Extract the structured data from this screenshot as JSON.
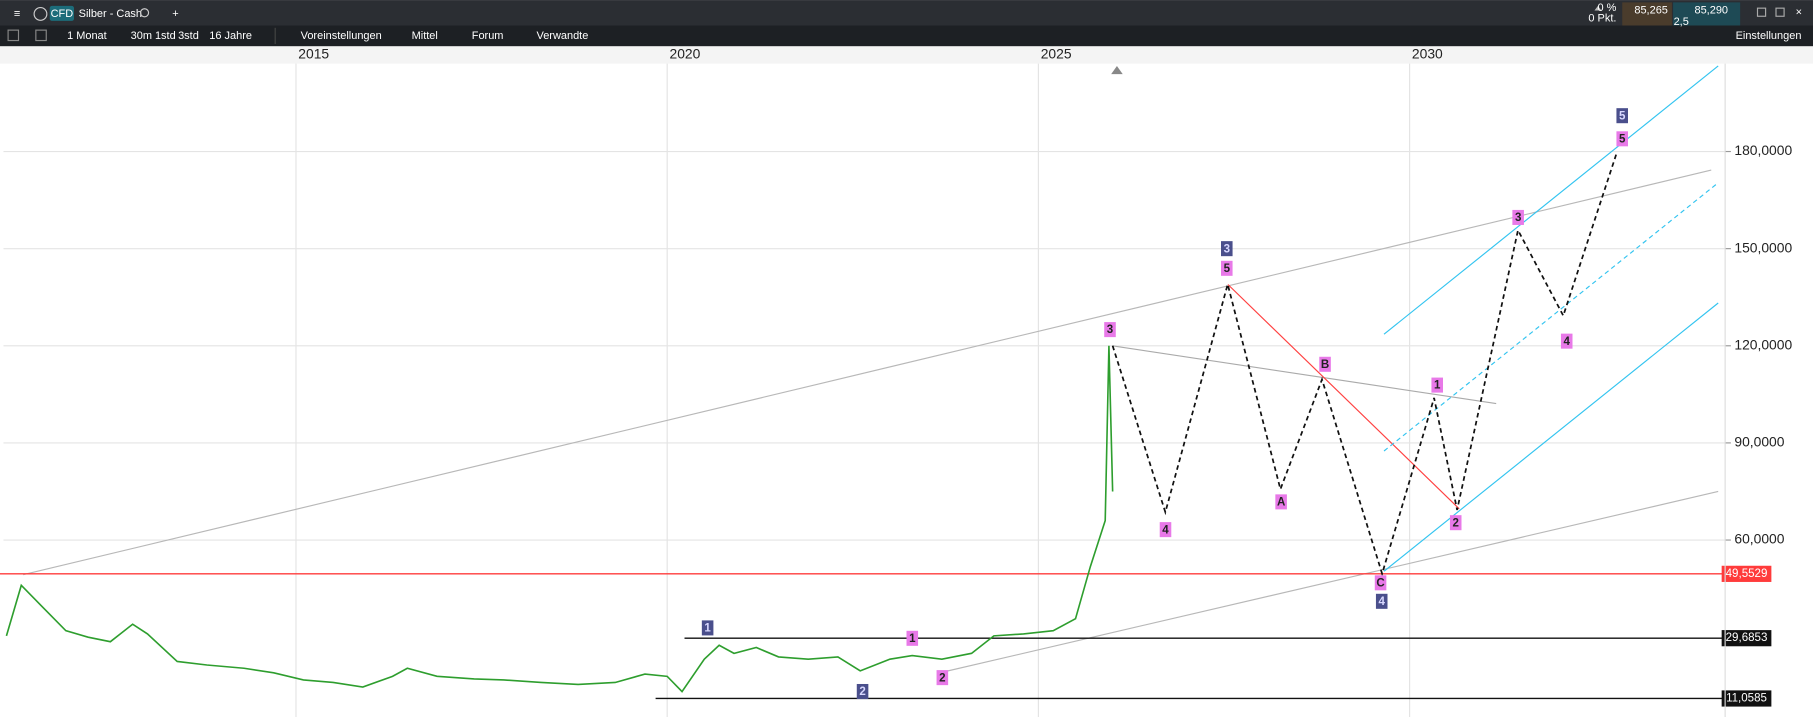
{
  "header": {
    "badge": "CFD",
    "instrument": "Silber - Cash",
    "change_pct": "0 %",
    "change_points": "0 Pkt.",
    "bid": "85,265",
    "ask": "85,290",
    "spread": "2,5"
  },
  "toolbar": {
    "interval": "1 Monat",
    "quick": [
      "30m",
      "1std",
      "3std"
    ],
    "range": "16 Jahre",
    "items": [
      "Voreinstellungen",
      "Mittel",
      "Forum",
      "Verwandte"
    ],
    "settings": "Einstellungen"
  },
  "chart_data": {
    "type": "line",
    "color": "#2e9e2e",
    "x": [
      2011.1,
      2011.3,
      2011.6,
      2011.9,
      2012.2,
      2012.5,
      2012.8,
      2013.0,
      2013.4,
      2013.8,
      2014.3,
      2014.7,
      2015.1,
      2015.5,
      2015.9,
      2016.3,
      2016.5,
      2016.9,
      2017.4,
      2017.8,
      2018.3,
      2018.8,
      2019.3,
      2019.7,
      2020.0,
      2020.2,
      2020.5,
      2020.7,
      2020.9,
      2021.2,
      2021.5,
      2021.9,
      2022.3,
      2022.6,
      2023.0,
      2023.3,
      2023.7,
      2024.1,
      2024.4,
      2024.8,
      2025.2,
      2025.5,
      2025.7,
      2025.9,
      2025.95,
      2026.0
    ],
    "values": [
      30.4,
      46,
      39,
      32,
      30,
      28.6,
      34,
      31,
      22.5,
      21.4,
      20.4,
      19,
      16.8,
      16,
      14.6,
      17.9,
      20.4,
      17.9,
      17.1,
      16.8,
      16,
      15.4,
      16,
      18.6,
      17.9,
      13.2,
      23.2,
      27.5,
      25,
      26.8,
      23.9,
      23.2,
      23.9,
      19.6,
      23.2,
      24.3,
      23.2,
      25,
      30.4,
      31,
      32,
      35.7,
      51.8,
      66,
      120,
      75
    ],
    "projection": {
      "x": [
        2026.0,
        2026.71,
        2027.55,
        2028.26,
        2028.82,
        2029.63,
        2030.33,
        2030.64,
        2031.46,
        2032.07,
        2032.79
      ],
      "values": [
        120,
        68.6,
        139,
        75.7,
        109.6,
        49.6,
        103.9,
        69.3,
        155.7,
        129.3,
        179.6
      ]
    },
    "levels": [
      {
        "value": 49.5529,
        "label": "49,5529",
        "color": "#ff3b3b"
      },
      {
        "value": 29.6853,
        "label": "29,6853",
        "color": "#111111"
      },
      {
        "value": 11.0585,
        "label": "11,0585",
        "color": "#111111"
      }
    ],
    "wave_labels": [
      {
        "text": "3",
        "color": "#e879e8"
      },
      {
        "text": "4",
        "color": "#e879e8"
      },
      {
        "text": "3",
        "color": "#4a4f8c"
      },
      {
        "text": "5",
        "color": "#e879e8"
      },
      {
        "text": "A",
        "color": "#e879e8"
      },
      {
        "text": "B",
        "color": "#e879e8"
      },
      {
        "text": "C",
        "color": "#e879e8"
      },
      {
        "text": "4",
        "color": "#4a4f8c"
      },
      {
        "text": "1",
        "color": "#e879e8"
      },
      {
        "text": "2",
        "color": "#e879e8"
      },
      {
        "text": "3",
        "color": "#e879e8"
      },
      {
        "text": "4",
        "color": "#e879e8"
      },
      {
        "text": "5",
        "color": "#4a4f8c"
      },
      {
        "text": "5",
        "color": "#e879e8"
      },
      {
        "text": "1",
        "color": "#4a4f8c"
      },
      {
        "text": "2",
        "color": "#4a4f8c"
      },
      {
        "text": "1",
        "color": "#e879e8"
      },
      {
        "text": "2",
        "color": "#e879e8"
      }
    ],
    "xlim": [
      2011.06,
      2034.25
    ],
    "xticks": [
      2015,
      2020,
      2025,
      2030
    ],
    "ylim": [
      5.36,
      207.14
    ],
    "yticks": [
      {
        "value": 60,
        "label": "60,0000"
      },
      {
        "value": 90,
        "label": "90,0000"
      },
      {
        "value": 120,
        "label": "120,0000"
      },
      {
        "value": 150,
        "label": "150,0000"
      },
      {
        "value": 180,
        "label": "180,0000"
      }
    ],
    "grid": true
  }
}
